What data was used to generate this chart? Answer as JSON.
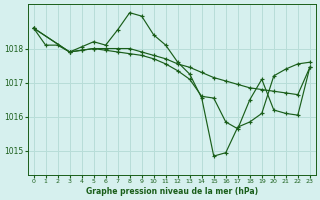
{
  "title": "Graphe pression niveau de la mer (hPa)",
  "bg_color": "#d6f0ee",
  "grid_color": "#b8ddd8",
  "line_color": "#1a5e1a",
  "xlim": [
    -0.5,
    23.5
  ],
  "ylim": [
    1014.3,
    1019.3
  ],
  "yticks": [
    1015,
    1016,
    1017,
    1018
  ],
  "xticks": [
    0,
    1,
    2,
    3,
    4,
    5,
    6,
    7,
    8,
    9,
    10,
    11,
    12,
    13,
    14,
    15,
    16,
    17,
    18,
    19,
    20,
    21,
    22,
    23
  ],
  "series": [
    {
      "x": [
        0,
        1,
        2,
        3,
        4,
        5,
        6,
        7,
        8,
        9,
        10,
        11,
        12,
        13,
        14,
        15,
        16,
        17,
        18,
        19,
        20,
        21,
        22,
        23
      ],
      "y": [
        1018.6,
        1018.1,
        1018.1,
        1017.9,
        1018.05,
        1018.2,
        1018.1,
        1018.55,
        1019.05,
        1018.95,
        1018.4,
        1018.1,
        1017.6,
        1017.25,
        1016.55,
        1014.85,
        1014.95,
        1015.7,
        1015.85,
        1016.1,
        1017.2,
        1017.4,
        1017.55,
        1017.6
      ]
    },
    {
      "x": [
        0,
        3,
        4,
        5,
        6,
        7,
        8,
        9,
        10,
        11,
        12,
        13,
        14,
        15,
        16,
        17,
        18,
        19,
        20,
        21,
        22,
        23
      ],
      "y": [
        1018.6,
        1017.9,
        1017.95,
        1018.0,
        1018.0,
        1018.0,
        1018.0,
        1017.9,
        1017.8,
        1017.7,
        1017.55,
        1017.45,
        1017.3,
        1017.15,
        1017.05,
        1016.95,
        1016.85,
        1016.8,
        1016.75,
        1016.7,
        1016.65,
        1017.45
      ]
    },
    {
      "x": [
        0,
        3,
        4,
        5,
        6,
        7,
        8,
        9,
        10,
        11,
        12,
        13,
        14,
        15,
        16,
        17,
        18,
        19,
        20,
        21,
        22,
        23
      ],
      "y": [
        1018.6,
        1017.9,
        1017.95,
        1018.0,
        1017.95,
        1017.9,
        1017.85,
        1017.8,
        1017.7,
        1017.55,
        1017.35,
        1017.1,
        1016.6,
        1016.55,
        1015.85,
        1015.65,
        1016.5,
        1017.1,
        1016.2,
        1016.1,
        1016.05,
        1017.45
      ]
    }
  ]
}
